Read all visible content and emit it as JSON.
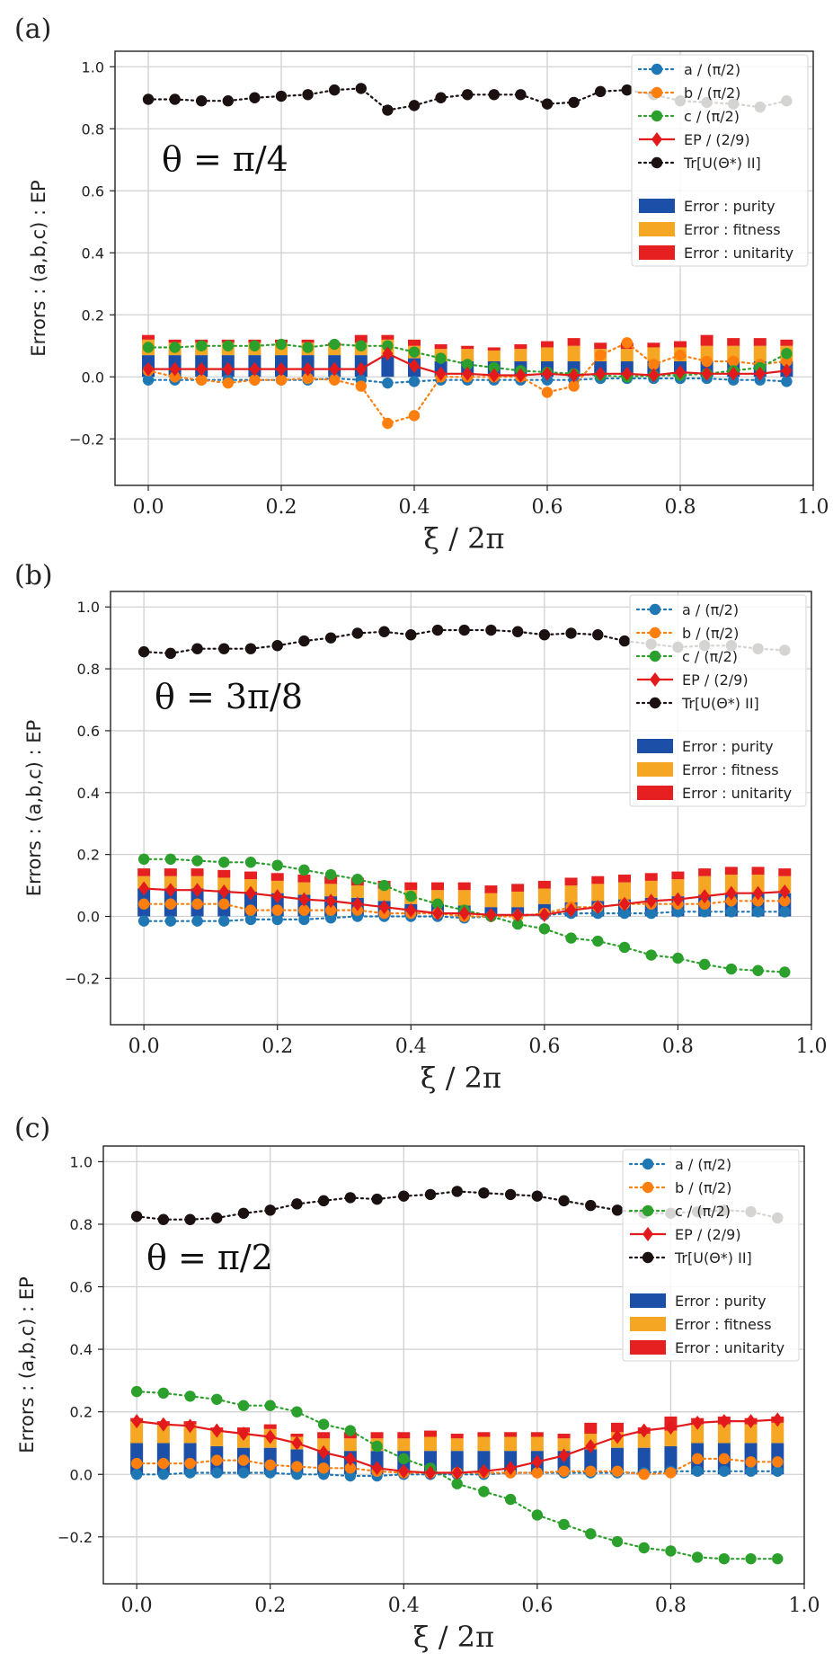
{
  "panels": [
    {
      "label": "(a)",
      "theta_label": "θ = π/4",
      "xlabel": "ξ / 2π",
      "ylabel": "Errors : (a,b,c) : EP",
      "xlim": [
        -0.05,
        1.0
      ],
      "ylim": [
        -0.35,
        1.05
      ],
      "xticks": [
        "0.0",
        "0.2",
        "0.4",
        "0.6",
        "0.8",
        "1.0"
      ],
      "yticks": [
        "−0.2",
        "0.0",
        "0.2",
        "0.4",
        "0.6",
        "0.8",
        "1.0"
      ],
      "legend_lines": [
        "a / (π/2)",
        "b / (π/2)",
        "c / (π/2)",
        "EP / (2/9)",
        "Tr[U(Θ*) II]"
      ],
      "legend_bars": [
        "Error : purity",
        "Error : fitness",
        "Error : unitarity"
      ]
    },
    {
      "label": "(b)",
      "theta_label": "θ = 3π/8",
      "xlabel": "ξ / 2π",
      "ylabel": "Errors : (a,b,c) : EP",
      "xlim": [
        -0.05,
        1.0
      ],
      "ylim": [
        -0.35,
        1.05
      ],
      "xticks": [
        "0.0",
        "0.2",
        "0.4",
        "0.6",
        "0.8",
        "1.0"
      ],
      "yticks": [
        "−0.2",
        "0.0",
        "0.2",
        "0.4",
        "0.6",
        "0.8",
        "1.0"
      ],
      "legend_lines": [
        "a / (π/2)",
        "b / (π/2)",
        "c / (π/2)",
        "EP / (2/9)",
        "Tr[U(Θ*) II]"
      ],
      "legend_bars": [
        "Error : purity",
        "Error : fitness",
        "Error : unitarity"
      ]
    },
    {
      "label": "(c)",
      "theta_label": "θ = π/2",
      "xlabel": "ξ / 2π",
      "ylabel": "Errors : (a,b,c) : EP",
      "xlim": [
        -0.05,
        1.0
      ],
      "ylim": [
        -0.35,
        1.05
      ],
      "xticks": [
        "0.0",
        "0.2",
        "0.4",
        "0.6",
        "0.8",
        "1.0"
      ],
      "yticks": [
        "−0.2",
        "0.0",
        "0.2",
        "0.4",
        "0.6",
        "0.8",
        "1.0"
      ],
      "legend_lines": [
        "a / (π/2)",
        "b / (π/2)",
        "c / (π/2)",
        "EP / (2/9)",
        "Tr[U(Θ*) II]"
      ],
      "legend_bars": [
        "Error : purity",
        "Error : fitness",
        "Error : unitarity"
      ]
    }
  ],
  "colors": {
    "a": "#1f77b4",
    "b": "#ff7f0e",
    "c": "#2ca02c",
    "ep": "#e31a1c",
    "tr": "#1a1110",
    "purity": "#1b4fa8",
    "fitness": "#f5a623",
    "unitarity": "#e62020",
    "grid": "#d0d0d0"
  },
  "chart_data": [
    {
      "type": "line",
      "x": [
        0.0,
        0.04,
        0.08,
        0.12,
        0.16,
        0.2,
        0.24,
        0.28,
        0.32,
        0.36,
        0.4,
        0.44,
        0.48,
        0.52,
        0.56,
        0.6,
        0.64,
        0.68,
        0.72,
        0.76,
        0.8,
        0.84,
        0.88,
        0.92,
        0.96
      ],
      "series": [
        {
          "name": "a / (π/2)",
          "kind": "dotted-marker",
          "values": [
            -0.01,
            -0.01,
            -0.01,
            -0.01,
            -0.01,
            -0.01,
            -0.01,
            -0.005,
            -0.01,
            -0.02,
            -0.015,
            -0.01,
            -0.01,
            -0.01,
            -0.01,
            -0.01,
            -0.01,
            -0.005,
            -0.005,
            -0.005,
            -0.005,
            -0.005,
            -0.01,
            -0.01,
            -0.015
          ]
        },
        {
          "name": "b / (π/2)",
          "kind": "dotted-marker",
          "values": [
            0.02,
            0.0,
            -0.01,
            -0.02,
            -0.01,
            -0.01,
            -0.005,
            -0.01,
            -0.03,
            -0.15,
            -0.125,
            0.0,
            0.0,
            0.0,
            0.0,
            -0.05,
            -0.03,
            0.07,
            0.11,
            0.04,
            0.07,
            0.05,
            0.05,
            0.04,
            0.05
          ]
        },
        {
          "name": "c / (π/2)",
          "kind": "dotted-marker",
          "values": [
            0.095,
            0.095,
            0.1,
            0.1,
            0.1,
            0.105,
            0.095,
            0.105,
            0.1,
            0.1,
            0.08,
            0.06,
            0.04,
            0.03,
            0.02,
            0.015,
            0.01,
            0.005,
            0.0,
            0.005,
            0.005,
            0.01,
            0.02,
            0.03,
            0.075
          ]
        },
        {
          "name": "EP / (2/9)",
          "kind": "solid-diamond",
          "values": [
            0.025,
            0.025,
            0.025,
            0.025,
            0.025,
            0.025,
            0.025,
            0.025,
            0.025,
            0.075,
            0.035,
            0.01,
            0.01,
            0.005,
            0.005,
            0.01,
            0.005,
            0.01,
            0.01,
            0.005,
            0.015,
            0.01,
            0.01,
            0.01,
            0.02
          ]
        },
        {
          "name": "Tr[U(Θ*) II]",
          "kind": "dotted-marker",
          "values": [
            0.895,
            0.895,
            0.89,
            0.89,
            0.9,
            0.905,
            0.91,
            0.925,
            0.93,
            0.86,
            0.875,
            0.9,
            0.91,
            0.91,
            0.91,
            0.88,
            0.885,
            0.92,
            0.925,
            0.91,
            0.89,
            0.885,
            0.88,
            0.87,
            0.89
          ]
        }
      ],
      "bars": [
        {
          "name": "Error : purity",
          "values": [
            0.07,
            0.07,
            0.07,
            0.07,
            0.07,
            0.07,
            0.07,
            0.07,
            0.07,
            0.07,
            0.06,
            0.05,
            0.05,
            0.05,
            0.05,
            0.05,
            0.05,
            0.05,
            0.05,
            0.05,
            0.05,
            0.05,
            0.05,
            0.05,
            0.05
          ]
        },
        {
          "name": "Error : fitness",
          "values": [
            0.05,
            0.04,
            0.04,
            0.04,
            0.04,
            0.04,
            0.04,
            0.03,
            0.04,
            0.05,
            0.04,
            0.04,
            0.04,
            0.035,
            0.04,
            0.045,
            0.05,
            0.04,
            0.04,
            0.045,
            0.045,
            0.05,
            0.05,
            0.05,
            0.05
          ]
        },
        {
          "name": "Error : unitarity",
          "values": [
            0.015,
            0.01,
            0.01,
            0.01,
            0.01,
            0.01,
            0.01,
            0.01,
            0.025,
            0.015,
            0.02,
            0.015,
            0.01,
            0.01,
            0.015,
            0.02,
            0.025,
            0.02,
            0.02,
            0.015,
            0.02,
            0.035,
            0.025,
            0.025,
            0.02
          ]
        }
      ],
      "xlabel": "ξ / 2π",
      "ylabel": "Errors : (a,b,c) : EP",
      "xlim": [
        -0.05,
        1.0
      ],
      "ylim": [
        -0.35,
        1.05
      ],
      "grid": true,
      "legend": "top-right"
    },
    {
      "type": "line",
      "x": [
        0.0,
        0.04,
        0.08,
        0.12,
        0.16,
        0.2,
        0.24,
        0.28,
        0.32,
        0.36,
        0.4,
        0.44,
        0.48,
        0.52,
        0.56,
        0.6,
        0.64,
        0.68,
        0.72,
        0.76,
        0.8,
        0.84,
        0.88,
        0.92,
        0.96
      ],
      "series": [
        {
          "name": "a / (π/2)",
          "kind": "dotted-marker",
          "values": [
            -0.015,
            -0.015,
            -0.015,
            -0.015,
            -0.01,
            -0.01,
            -0.01,
            -0.005,
            0.0,
            0.0,
            0.0,
            0.0,
            -0.005,
            0.0,
            0.005,
            0.005,
            0.01,
            0.01,
            0.01,
            0.01,
            0.015,
            0.015,
            0.015,
            0.015,
            0.015
          ]
        },
        {
          "name": "b / (π/2)",
          "kind": "dotted-marker",
          "values": [
            0.04,
            0.04,
            0.04,
            0.04,
            0.02,
            0.02,
            0.02,
            0.02,
            0.02,
            0.01,
            0.01,
            0.01,
            0.0,
            0.0,
            0.0,
            0.01,
            0.03,
            0.03,
            0.04,
            0.04,
            0.04,
            0.04,
            0.05,
            0.05,
            0.05
          ]
        },
        {
          "name": "c / (π/2)",
          "kind": "dotted-marker",
          "values": [
            0.185,
            0.185,
            0.18,
            0.175,
            0.175,
            0.165,
            0.15,
            0.135,
            0.12,
            0.1,
            0.065,
            0.04,
            0.02,
            0.0,
            -0.025,
            -0.04,
            -0.07,
            -0.08,
            -0.1,
            -0.125,
            -0.135,
            -0.155,
            -0.17,
            -0.175,
            -0.18
          ]
        },
        {
          "name": "EP / (2/9)",
          "kind": "solid-diamond",
          "values": [
            0.09,
            0.085,
            0.085,
            0.08,
            0.075,
            0.065,
            0.055,
            0.05,
            0.04,
            0.03,
            0.02,
            0.01,
            0.01,
            0.005,
            0.005,
            0.005,
            0.02,
            0.03,
            0.04,
            0.05,
            0.055,
            0.065,
            0.075,
            0.075,
            0.08
          ]
        },
        {
          "name": "Tr[U(Θ*) II]",
          "kind": "dotted-marker",
          "values": [
            0.855,
            0.85,
            0.865,
            0.865,
            0.865,
            0.875,
            0.89,
            0.9,
            0.915,
            0.92,
            0.91,
            0.925,
            0.925,
            0.925,
            0.92,
            0.91,
            0.915,
            0.91,
            0.89,
            0.88,
            0.87,
            0.875,
            0.875,
            0.865,
            0.86
          ]
        }
      ],
      "bars": [
        {
          "name": "Error : purity",
          "values": [
            0.09,
            0.09,
            0.09,
            0.085,
            0.08,
            0.075,
            0.07,
            0.065,
            0.06,
            0.05,
            0.04,
            0.04,
            0.035,
            0.03,
            0.03,
            0.04,
            0.045,
            0.05,
            0.055,
            0.06,
            0.065,
            0.07,
            0.075,
            0.075,
            0.075
          ]
        },
        {
          "name": "Error : fitness",
          "values": [
            0.04,
            0.04,
            0.04,
            0.04,
            0.04,
            0.04,
            0.04,
            0.04,
            0.04,
            0.04,
            0.045,
            0.045,
            0.05,
            0.045,
            0.05,
            0.05,
            0.055,
            0.055,
            0.055,
            0.055,
            0.055,
            0.06,
            0.06,
            0.06,
            0.055
          ]
        },
        {
          "name": "Error : unitarity",
          "values": [
            0.025,
            0.025,
            0.025,
            0.025,
            0.025,
            0.025,
            0.025,
            0.025,
            0.025,
            0.025,
            0.025,
            0.025,
            0.025,
            0.025,
            0.025,
            0.025,
            0.025,
            0.025,
            0.025,
            0.025,
            0.025,
            0.025,
            0.025,
            0.025,
            0.025
          ]
        }
      ],
      "xlabel": "ξ / 2π",
      "ylabel": "Errors : (a,b,c) : EP",
      "xlim": [
        -0.05,
        1.0
      ],
      "ylim": [
        -0.35,
        1.05
      ],
      "grid": true,
      "legend": "top-right"
    },
    {
      "type": "line",
      "x": [
        0.0,
        0.04,
        0.08,
        0.12,
        0.16,
        0.2,
        0.24,
        0.28,
        0.32,
        0.36,
        0.4,
        0.44,
        0.48,
        0.52,
        0.56,
        0.6,
        0.64,
        0.68,
        0.72,
        0.76,
        0.8,
        0.84,
        0.88,
        0.92,
        0.96
      ],
      "series": [
        {
          "name": "a / (π/2)",
          "kind": "dotted-marker",
          "values": [
            0.0,
            0.0,
            0.005,
            0.005,
            0.005,
            0.005,
            0.0,
            0.0,
            -0.005,
            -0.005,
            0.0,
            0.0,
            0.0,
            0.0,
            0.005,
            0.005,
            0.005,
            0.005,
            0.005,
            0.005,
            0.01,
            0.01,
            0.01,
            0.01,
            0.01
          ]
        },
        {
          "name": "b / (π/2)",
          "kind": "dotted-marker",
          "values": [
            0.035,
            0.035,
            0.035,
            0.045,
            0.045,
            0.03,
            0.025,
            0.02,
            0.02,
            0.01,
            0.005,
            0.005,
            0.005,
            0.005,
            0.005,
            0.005,
            0.01,
            0.01,
            0.01,
            0.0,
            0.005,
            0.05,
            0.05,
            0.04,
            0.04
          ]
        },
        {
          "name": "c / (π/2)",
          "kind": "dotted-marker",
          "values": [
            0.265,
            0.26,
            0.25,
            0.24,
            0.22,
            0.22,
            0.2,
            0.16,
            0.14,
            0.09,
            0.05,
            0.02,
            -0.03,
            -0.055,
            -0.08,
            -0.13,
            -0.16,
            -0.19,
            -0.215,
            -0.235,
            -0.245,
            -0.265,
            -0.27,
            -0.27,
            -0.27
          ]
        },
        {
          "name": "EP / (2/9)",
          "kind": "solid-diamond",
          "values": [
            0.17,
            0.16,
            0.155,
            0.14,
            0.13,
            0.12,
            0.1,
            0.07,
            0.05,
            0.02,
            0.01,
            0.005,
            0.005,
            0.01,
            0.02,
            0.04,
            0.06,
            0.09,
            0.12,
            0.14,
            0.15,
            0.165,
            0.17,
            0.17,
            0.175
          ]
        },
        {
          "name": "Tr[U(Θ*) II]",
          "kind": "dotted-marker",
          "values": [
            0.825,
            0.815,
            0.815,
            0.82,
            0.835,
            0.845,
            0.865,
            0.875,
            0.885,
            0.88,
            0.89,
            0.895,
            0.905,
            0.9,
            0.895,
            0.89,
            0.875,
            0.86,
            0.845,
            0.835,
            0.835,
            0.84,
            0.845,
            0.84,
            0.82
          ]
        }
      ],
      "bars": [
        {
          "name": "Error : purity",
          "values": [
            0.1,
            0.1,
            0.1,
            0.09,
            0.085,
            0.085,
            0.08,
            0.075,
            0.075,
            0.075,
            0.075,
            0.075,
            0.075,
            0.075,
            0.075,
            0.075,
            0.075,
            0.08,
            0.085,
            0.085,
            0.09,
            0.1,
            0.1,
            0.1,
            0.1
          ]
        },
        {
          "name": "Error : fitness",
          "values": [
            0.07,
            0.06,
            0.06,
            0.05,
            0.05,
            0.06,
            0.04,
            0.04,
            0.04,
            0.04,
            0.04,
            0.045,
            0.04,
            0.045,
            0.045,
            0.045,
            0.04,
            0.05,
            0.05,
            0.045,
            0.05,
            0.06,
            0.06,
            0.06,
            0.065
          ]
        },
        {
          "name": "Error : unitarity",
          "values": [
            0.01,
            0.01,
            0.01,
            0.01,
            0.015,
            0.015,
            0.01,
            0.02,
            0.02,
            0.02,
            0.02,
            0.02,
            0.015,
            0.015,
            0.015,
            0.015,
            0.015,
            0.035,
            0.03,
            0.02,
            0.045,
            0.02,
            0.025,
            0.02,
            0.02
          ]
        }
      ],
      "xlabel": "ξ / 2π",
      "ylabel": "Errors : (a,b,c) : EP",
      "xlim": [
        -0.05,
        1.0
      ],
      "ylim": [
        -0.35,
        1.05
      ],
      "grid": true,
      "legend": "top-right"
    }
  ]
}
